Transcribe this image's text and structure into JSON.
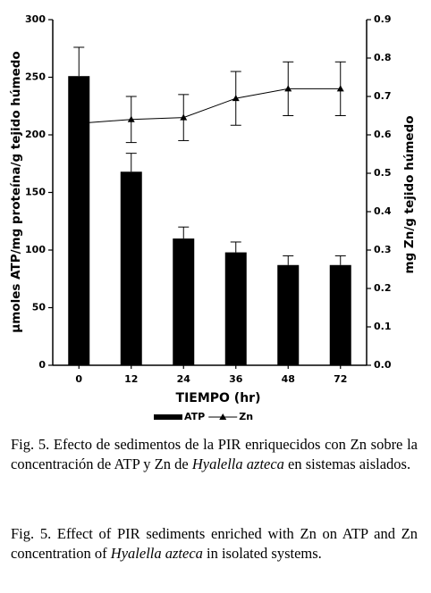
{
  "chart_data": {
    "type": "bar",
    "categories": [
      "0",
      "12",
      "24",
      "36",
      "48",
      "72"
    ],
    "xlabel": "TIEMPO (hr)",
    "ylabel": "µmoles ATP/mg proteína/g tejido húmedo",
    "y2label": "mg Zn/g tejido húmedo",
    "ylim": [
      0,
      300
    ],
    "yticks": [
      0,
      50,
      100,
      150,
      200,
      250,
      300
    ],
    "y2lim": [
      0,
      0.9
    ],
    "y2ticks": [
      {
        "value": 0,
        "label": "0.0"
      },
      0.1,
      0.2,
      0.3,
      0.4,
      0.5,
      0.6,
      0.7,
      0.8,
      0.9
    ],
    "series": [
      {
        "name": "ATP",
        "type": "bar",
        "color": "#000000",
        "values": [
          251,
          168,
          110,
          98,
          87,
          87
        ],
        "errors": [
          25,
          16,
          10,
          9,
          8,
          8
        ]
      },
      {
        "name": "Zn",
        "type": "line",
        "axis": "y2",
        "color": "#000000",
        "values": [
          0.63,
          0.64,
          0.645,
          0.695,
          0.72,
          0.72
        ],
        "errors": [
          0.06,
          0.06,
          0.06,
          0.07,
          0.07,
          0.07
        ]
      }
    ]
  },
  "caption_es": {
    "before": "Fig. 5. Efecto de sedimentos de la PIR enriquecidos con Zn sobre la concentración de ATP y Zn de ",
    "species": "Hyalella azteca",
    "after": " en sistemas aislados."
  },
  "caption_en": {
    "before": "Fig. 5. Effect of PIR sediments enriched with Zn on ATP and Zn concentration of ",
    "species": "Hyalella azteca",
    "after": " in isolated systems."
  }
}
